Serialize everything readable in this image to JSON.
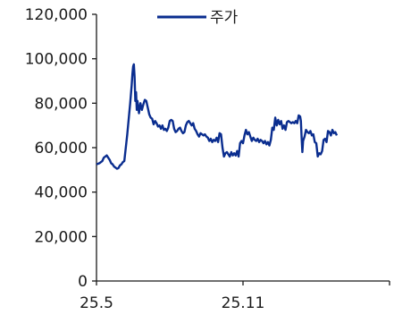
{
  "chart_data": {
    "type": "line",
    "title": "",
    "xlabel": "",
    "ylabel": "",
    "ylim": [
      0,
      120000
    ],
    "y_ticks": [
      0,
      20000,
      40000,
      60000,
      80000,
      100000,
      120000
    ],
    "y_tick_labels": [
      "0",
      "20,000",
      "40,000",
      "60,000",
      "80,000",
      "100,000",
      "120,000"
    ],
    "x_tick_labels": [
      "25.5",
      "25.11"
    ],
    "x_ticks": [
      0,
      1
    ],
    "xlim": [
      0,
      2.2
    ],
    "grid": false,
    "legend_position": "top",
    "series_color": "#0a2d8f",
    "series": [
      {
        "name": "주가",
        "points": [
          [
            0.0,
            52500
          ],
          [
            0.02,
            53000
          ],
          [
            0.04,
            54000
          ],
          [
            0.05,
            55500
          ],
          [
            0.06,
            56000
          ],
          [
            0.07,
            56500
          ],
          [
            0.08,
            55500
          ],
          [
            0.09,
            54500
          ],
          [
            0.1,
            53000
          ],
          [
            0.11,
            52500
          ],
          [
            0.12,
            51500
          ],
          [
            0.13,
            51000
          ],
          [
            0.14,
            50500
          ],
          [
            0.15,
            50800
          ],
          [
            0.16,
            52000
          ],
          [
            0.17,
            52500
          ],
          [
            0.18,
            53500
          ],
          [
            0.19,
            54000
          ],
          [
            0.2,
            60000
          ],
          [
            0.21,
            66000
          ],
          [
            0.22,
            73000
          ],
          [
            0.23,
            80000
          ],
          [
            0.24,
            88000
          ],
          [
            0.245,
            93000
          ],
          [
            0.25,
            96500
          ],
          [
            0.255,
            97500
          ],
          [
            0.26,
            92000
          ],
          [
            0.265,
            81000
          ],
          [
            0.27,
            85000
          ],
          [
            0.275,
            77000
          ],
          [
            0.28,
            81000
          ],
          [
            0.29,
            75500
          ],
          [
            0.3,
            80000
          ],
          [
            0.31,
            77000
          ],
          [
            0.32,
            79500
          ],
          [
            0.33,
            81500
          ],
          [
            0.34,
            81000
          ],
          [
            0.35,
            78000
          ],
          [
            0.36,
            75000
          ],
          [
            0.37,
            73500
          ],
          [
            0.38,
            73000
          ],
          [
            0.39,
            70500
          ],
          [
            0.4,
            72000
          ],
          [
            0.41,
            71000
          ],
          [
            0.42,
            69500
          ],
          [
            0.43,
            70000
          ],
          [
            0.44,
            68500
          ],
          [
            0.45,
            70000
          ],
          [
            0.46,
            68000
          ],
          [
            0.47,
            68500
          ],
          [
            0.48,
            67500
          ],
          [
            0.49,
            69000
          ],
          [
            0.5,
            72000
          ],
          [
            0.51,
            72500
          ],
          [
            0.52,
            72000
          ],
          [
            0.53,
            68500
          ],
          [
            0.54,
            67000
          ],
          [
            0.55,
            67500
          ],
          [
            0.56,
            68500
          ],
          [
            0.57,
            69000
          ],
          [
            0.58,
            67500
          ],
          [
            0.59,
            66500
          ],
          [
            0.6,
            67000
          ],
          [
            0.61,
            70000
          ],
          [
            0.62,
            71500
          ],
          [
            0.63,
            72000
          ],
          [
            0.64,
            71000
          ],
          [
            0.65,
            70000
          ],
          [
            0.66,
            71000
          ],
          [
            0.67,
            68500
          ],
          [
            0.68,
            67500
          ],
          [
            0.69,
            66000
          ],
          [
            0.7,
            65000
          ],
          [
            0.71,
            66500
          ],
          [
            0.72,
            66000
          ],
          [
            0.73,
            65500
          ],
          [
            0.74,
            66000
          ],
          [
            0.75,
            65000
          ],
          [
            0.76,
            64500
          ],
          [
            0.77,
            63000
          ],
          [
            0.78,
            64000
          ],
          [
            0.79,
            62500
          ],
          [
            0.8,
            63500
          ],
          [
            0.81,
            63000
          ],
          [
            0.82,
            64500
          ],
          [
            0.83,
            62500
          ],
          [
            0.84,
            66500
          ],
          [
            0.85,
            66000
          ],
          [
            0.86,
            60000
          ],
          [
            0.87,
            56000
          ],
          [
            0.88,
            57500
          ],
          [
            0.89,
            58000
          ],
          [
            0.9,
            57000
          ],
          [
            0.91,
            56000
          ],
          [
            0.92,
            58000
          ],
          [
            0.93,
            56500
          ],
          [
            0.94,
            57500
          ],
          [
            0.95,
            56500
          ],
          [
            0.96,
            58500
          ],
          [
            0.97,
            56000
          ],
          [
            0.98,
            62000
          ],
          [
            0.99,
            63000
          ],
          [
            1.0,
            62000
          ],
          [
            1.01,
            65500
          ],
          [
            1.02,
            68000
          ],
          [
            1.03,
            66000
          ],
          [
            1.04,
            67000
          ],
          [
            1.05,
            65000
          ],
          [
            1.06,
            63000
          ],
          [
            1.07,
            64500
          ],
          [
            1.08,
            63500
          ],
          [
            1.09,
            63000
          ],
          [
            1.1,
            64000
          ],
          [
            1.11,
            62500
          ],
          [
            1.12,
            63500
          ],
          [
            1.13,
            63000
          ],
          [
            1.14,
            62000
          ],
          [
            1.15,
            63000
          ],
          [
            1.16,
            61500
          ],
          [
            1.17,
            62500
          ],
          [
            1.18,
            61000
          ],
          [
            1.19,
            63500
          ],
          [
            1.2,
            69000
          ],
          [
            1.21,
            68000
          ],
          [
            1.22,
            73500
          ],
          [
            1.23,
            70000
          ],
          [
            1.24,
            72500
          ],
          [
            1.25,
            70500
          ],
          [
            1.26,
            72000
          ],
          [
            1.27,
            68500
          ],
          [
            1.28,
            70000
          ],
          [
            1.29,
            68000
          ],
          [
            1.3,
            71500
          ],
          [
            1.31,
            72000
          ],
          [
            1.32,
            71500
          ],
          [
            1.33,
            71000
          ],
          [
            1.34,
            71500
          ],
          [
            1.35,
            71000
          ],
          [
            1.36,
            72000
          ],
          [
            1.37,
            71000
          ],
          [
            1.38,
            74500
          ],
          [
            1.39,
            74000
          ],
          [
            1.395,
            72000
          ],
          [
            1.4,
            64500
          ],
          [
            1.405,
            58000
          ],
          [
            1.41,
            63000
          ],
          [
            1.42,
            65000
          ],
          [
            1.43,
            68000
          ],
          [
            1.44,
            67000
          ],
          [
            1.45,
            66500
          ],
          [
            1.46,
            67500
          ],
          [
            1.47,
            65500
          ],
          [
            1.48,
            66000
          ],
          [
            1.49,
            62500
          ],
          [
            1.5,
            62000
          ],
          [
            1.51,
            56000
          ],
          [
            1.52,
            57500
          ],
          [
            1.53,
            57000
          ],
          [
            1.54,
            58500
          ],
          [
            1.55,
            63500
          ],
          [
            1.56,
            64000
          ],
          [
            1.57,
            62500
          ],
          [
            1.58,
            67500
          ],
          [
            1.59,
            67000
          ],
          [
            1.6,
            65500
          ],
          [
            1.61,
            68000
          ],
          [
            1.62,
            66500
          ],
          [
            1.63,
            67000
          ],
          [
            1.64,
            65500
          ]
        ]
      }
    ]
  }
}
